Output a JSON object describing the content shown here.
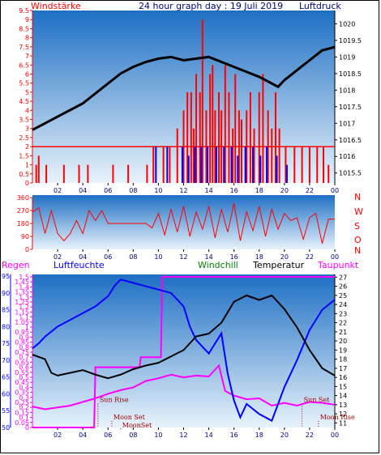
{
  "header": {
    "title": "24 hour graph day : 19 Juli 2019",
    "left_label": "Windstärke",
    "right_label": "Luftdruck"
  },
  "colors": {
    "wind_speed": "#ff0000",
    "wind_gust": "#0000ff",
    "pressure": "#000000",
    "wind_dir": "#ff0000",
    "rain": "#ff00ff",
    "humidity": "#0000ff",
    "windchill": "#008000",
    "temperature": "#000000",
    "dewpoint": "#ff00ff",
    "gradient_top": "#1e6fc4",
    "gradient_bottom": "#e8f3fb"
  },
  "chart_data": [
    {
      "id": "wind_pressure",
      "type": "bar",
      "title": "24 hour graph day : 19 Juli 2019",
      "left_axis_label": "Windstärke",
      "right_axis_label": "Luftdruck",
      "x_ticks": [
        "02",
        "04",
        "06",
        "08",
        "10",
        "12",
        "14",
        "16",
        "18",
        "20",
        "22",
        "00"
      ],
      "left_ticks": [
        0,
        0.5,
        1,
        1.5,
        2,
        2.5,
        3,
        3.5,
        4,
        4.5,
        5,
        5.5,
        6,
        6.5,
        7,
        7.5,
        8,
        8.5,
        9,
        9.5
      ],
      "right_ticks": [
        1015.5,
        1016,
        1016.5,
        1017,
        1017.5,
        1018,
        1018.5,
        1019,
        1019.5,
        1020
      ],
      "ylim_left": [
        0,
        9.5
      ],
      "ylim_right": [
        1015.2,
        1020.4
      ],
      "xlim": [
        0,
        24
      ],
      "pressure_points": [
        [
          0,
          1016.8
        ],
        [
          1,
          1017.0
        ],
        [
          2,
          1017.2
        ],
        [
          3,
          1017.4
        ],
        [
          4,
          1017.6
        ],
        [
          5,
          1017.9
        ],
        [
          6,
          1018.2
        ],
        [
          7,
          1018.5
        ],
        [
          8,
          1018.7
        ],
        [
          9,
          1018.85
        ],
        [
          10,
          1018.95
        ],
        [
          11,
          1019.0
        ],
        [
          12,
          1018.9
        ],
        [
          13,
          1018.95
        ],
        [
          14,
          1019.0
        ],
        [
          15,
          1018.85
        ],
        [
          16,
          1018.7
        ],
        [
          17,
          1018.55
        ],
        [
          18,
          1018.4
        ],
        [
          19,
          1018.2
        ],
        [
          19.5,
          1018.1
        ],
        [
          20,
          1018.3
        ],
        [
          21,
          1018.6
        ],
        [
          22,
          1018.9
        ],
        [
          23,
          1019.2
        ],
        [
          24,
          1019.3
        ]
      ],
      "wind_bars": [
        [
          0.3,
          1
        ],
        [
          0.5,
          1.5
        ],
        [
          1.1,
          1
        ],
        [
          2.5,
          1
        ],
        [
          3.7,
          1
        ],
        [
          4.4,
          1
        ],
        [
          6.4,
          1
        ],
        [
          7.6,
          1
        ],
        [
          9.1,
          1
        ],
        [
          9.6,
          2
        ],
        [
          10.4,
          2
        ],
        [
          10.9,
          2
        ],
        [
          11.5,
          3
        ],
        [
          12.0,
          4
        ],
        [
          12.3,
          5
        ],
        [
          12.6,
          5
        ],
        [
          12.8,
          3
        ],
        [
          13.0,
          6
        ],
        [
          13.3,
          5
        ],
        [
          13.5,
          9
        ],
        [
          13.8,
          4
        ],
        [
          14.1,
          6
        ],
        [
          14.3,
          6.5
        ],
        [
          14.5,
          4
        ],
        [
          14.8,
          5
        ],
        [
          15.0,
          4
        ],
        [
          15.3,
          6.5
        ],
        [
          15.6,
          5
        ],
        [
          15.9,
          3
        ],
        [
          16.1,
          6
        ],
        [
          16.4,
          4
        ],
        [
          16.6,
          3.5
        ],
        [
          17.0,
          4
        ],
        [
          17.3,
          5
        ],
        [
          17.6,
          3
        ],
        [
          18.0,
          5
        ],
        [
          18.3,
          6
        ],
        [
          18.7,
          4
        ],
        [
          19.0,
          3
        ],
        [
          19.3,
          5
        ],
        [
          19.6,
          3
        ],
        [
          20.1,
          2
        ],
        [
          20.8,
          2
        ],
        [
          21.4,
          2
        ],
        [
          22.0,
          2
        ],
        [
          22.6,
          2
        ],
        [
          23.1,
          2
        ],
        [
          23.5,
          1
        ]
      ],
      "gust_bars": [
        [
          9.8,
          2
        ],
        [
          10.7,
          2
        ],
        [
          11.9,
          2
        ],
        [
          12.4,
          1.5
        ],
        [
          12.9,
          2
        ],
        [
          13.4,
          2
        ],
        [
          13.9,
          2
        ],
        [
          14.6,
          2
        ],
        [
          15.2,
          2
        ],
        [
          15.8,
          2
        ],
        [
          16.3,
          1.5
        ],
        [
          16.9,
          2
        ],
        [
          17.5,
          2
        ],
        [
          18.1,
          1.5
        ],
        [
          18.6,
          2
        ],
        [
          19.4,
          1.5
        ],
        [
          20.2,
          1
        ]
      ]
    },
    {
      "id": "wind_direction",
      "type": "line",
      "y_ticks": [
        0,
        90,
        180,
        270,
        360
      ],
      "right_labels": [
        "N",
        "W",
        "S",
        "O",
        "N"
      ],
      "ylim": [
        0,
        360
      ],
      "xlim": [
        0,
        24
      ],
      "points": [
        [
          0,
          260
        ],
        [
          0.5,
          290
        ],
        [
          1,
          110
        ],
        [
          1.5,
          270
        ],
        [
          2,
          110
        ],
        [
          2.5,
          60
        ],
        [
          3,
          110
        ],
        [
          3.5,
          200
        ],
        [
          4,
          110
        ],
        [
          4.5,
          270
        ],
        [
          5,
          200
        ],
        [
          5.5,
          270
        ],
        [
          6,
          180
        ],
        [
          8,
          180
        ],
        [
          9,
          180
        ],
        [
          9.5,
          150
        ],
        [
          10,
          250
        ],
        [
          10.5,
          100
        ],
        [
          11,
          280
        ],
        [
          11.5,
          120
        ],
        [
          12,
          300
        ],
        [
          12.5,
          90
        ],
        [
          13,
          260
        ],
        [
          13.5,
          140
        ],
        [
          14,
          300
        ],
        [
          14.5,
          80
        ],
        [
          15,
          280
        ],
        [
          15.5,
          120
        ],
        [
          16,
          320
        ],
        [
          16.5,
          60
        ],
        [
          17,
          260
        ],
        [
          17.5,
          130
        ],
        [
          18,
          300
        ],
        [
          18.5,
          90
        ],
        [
          19,
          280
        ],
        [
          19.5,
          140
        ],
        [
          20,
          250
        ],
        [
          20.5,
          200
        ],
        [
          21,
          220
        ],
        [
          21.5,
          70
        ],
        [
          22,
          220
        ],
        [
          22.5,
          250
        ],
        [
          23,
          40
        ],
        [
          23.5,
          210
        ],
        [
          24,
          210
        ]
      ]
    },
    {
      "id": "temp_humidity",
      "type": "line",
      "labels": {
        "rain": "Regen",
        "humidity": "Luftfeuchte",
        "windchill": "Windchill",
        "temperature": "Temperatur",
        "dewpoint": "Taupunkt"
      },
      "rain_ticks": [
        0,
        0.05,
        0.1,
        0.15,
        0.2,
        0.25,
        0.3,
        0.35,
        0.4,
        0.45,
        0.5,
        0.55,
        0.6,
        0.65,
        0.7,
        0.75,
        0.8,
        0.85,
        0.9,
        0.95,
        1,
        1.05,
        1.1,
        1.15,
        1.2,
        1.25,
        1.3,
        1.35,
        1.4,
        1.45,
        1.5
      ],
      "humidity_ticks": [
        50,
        55,
        60,
        65,
        70,
        75,
        80,
        85,
        90,
        95
      ],
      "temp_ticks": [
        11,
        12,
        13,
        14,
        15,
        16,
        17,
        18,
        19,
        20,
        21,
        22,
        23,
        24,
        25,
        26,
        27
      ],
      "ylim_humidity": [
        50,
        95.5
      ],
      "ylim_temp": [
        10.5,
        27.3
      ],
      "ylim_rain": [
        0,
        1.5
      ],
      "xlim": [
        0,
        24
      ],
      "x_ticks": [
        "02",
        "04",
        "06",
        "08",
        "10",
        "12",
        "14",
        "16",
        "18",
        "20",
        "22",
        "00"
      ],
      "temperature": [
        [
          0,
          18.5
        ],
        [
          1,
          18.0
        ],
        [
          1.5,
          16.5
        ],
        [
          2,
          16.2
        ],
        [
          3,
          16.5
        ],
        [
          4,
          16.8
        ],
        [
          5,
          16.3
        ],
        [
          6,
          15.9
        ],
        [
          7,
          16.3
        ],
        [
          8,
          16.9
        ],
        [
          9,
          17.3
        ],
        [
          10,
          17.6
        ],
        [
          11,
          18.3
        ],
        [
          12,
          19.0
        ],
        [
          13,
          20.5
        ],
        [
          14,
          20.8
        ],
        [
          15,
          22.0
        ],
        [
          16,
          24.3
        ],
        [
          17,
          25.0
        ],
        [
          18,
          24.5
        ],
        [
          19,
          25.0
        ],
        [
          20,
          23.5
        ],
        [
          21,
          21.5
        ],
        [
          22,
          19.0
        ],
        [
          23,
          17.0
        ],
        [
          24,
          16.2
        ]
      ],
      "humidity": [
        [
          0,
          73.5
        ],
        [
          0.5,
          75
        ],
        [
          1,
          77
        ],
        [
          2,
          80
        ],
        [
          3,
          82
        ],
        [
          4,
          84
        ],
        [
          5,
          86
        ],
        [
          6,
          89
        ],
        [
          6.5,
          92
        ],
        [
          7,
          94
        ],
        [
          8,
          93
        ],
        [
          9,
          92
        ],
        [
          10,
          91
        ],
        [
          11,
          90
        ],
        [
          12,
          86
        ],
        [
          12.5,
          80
        ],
        [
          13,
          76
        ],
        [
          14,
          72
        ],
        [
          15,
          78
        ],
        [
          15.5,
          66
        ],
        [
          16,
          58
        ],
        [
          16.5,
          53
        ],
        [
          17,
          57
        ],
        [
          18,
          54
        ],
        [
          19,
          52
        ],
        [
          19.5,
          57
        ],
        [
          20,
          62
        ],
        [
          21,
          70
        ],
        [
          22,
          79
        ],
        [
          23,
          85
        ],
        [
          24,
          88
        ]
      ],
      "dewpoint": [
        [
          0,
          12.8
        ],
        [
          1,
          12.5
        ],
        [
          2,
          12.7
        ],
        [
          3,
          12.9
        ],
        [
          4,
          13.3
        ],
        [
          5,
          13.7
        ],
        [
          6,
          14.2
        ],
        [
          7,
          14.6
        ],
        [
          8,
          14.9
        ],
        [
          9,
          15.6
        ],
        [
          10,
          15.9
        ],
        [
          11,
          16.3
        ],
        [
          12,
          16.0
        ],
        [
          13,
          16.2
        ],
        [
          14,
          16.1
        ],
        [
          14.8,
          17.3
        ],
        [
          15.3,
          14.5
        ],
        [
          16,
          14.0
        ],
        [
          17,
          13.6
        ],
        [
          18,
          13.7
        ],
        [
          19,
          12.9
        ],
        [
          20,
          13.2
        ],
        [
          21,
          12.9
        ],
        [
          22,
          13.3
        ],
        [
          23,
          13.2
        ],
        [
          24,
          13.0
        ]
      ],
      "rain": [
        [
          0,
          0
        ],
        [
          4.9,
          0
        ],
        [
          5.0,
          0.6
        ],
        [
          8.5,
          0.6
        ],
        [
          8.6,
          0.7
        ],
        [
          10.2,
          0.7
        ],
        [
          10.3,
          1.5
        ],
        [
          24,
          1.5
        ]
      ],
      "annotations": [
        {
          "text": "Sun Rise",
          "x": 5.2,
          "y_temp": 13.3
        },
        {
          "text": "Moon Set",
          "x": 6.3,
          "y_temp": 11.4
        },
        {
          "text": "MoonSet",
          "x": 7.0,
          "y_temp": 10.5
        },
        {
          "text": "Sun Set",
          "x": 21.4,
          "y_temp": 13.3
        },
        {
          "text": "Moon Rise",
          "x": 22.7,
          "y_temp": 11.4
        }
      ]
    }
  ]
}
